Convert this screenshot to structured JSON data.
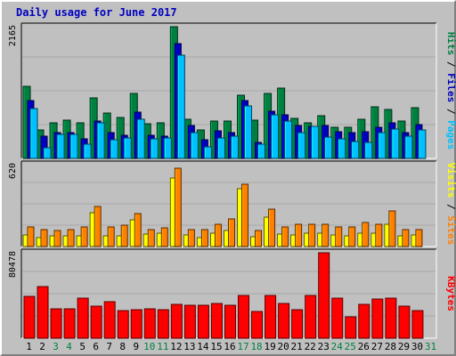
{
  "chart_data": {
    "type": "bar",
    "title": "Daily usage for June 2017",
    "categories": [
      "1",
      "2",
      "3",
      "4",
      "5",
      "6",
      "7",
      "8",
      "9",
      "10",
      "11",
      "12",
      "13",
      "14",
      "15",
      "16",
      "17",
      "18",
      "19",
      "20",
      "21",
      "22",
      "23",
      "24",
      "25",
      "26",
      "27",
      "28",
      "29",
      "30",
      "31"
    ],
    "weekend_days": [
      "3",
      "4",
      "10",
      "11",
      "17",
      "18",
      "24",
      "25",
      "31"
    ],
    "colors": {
      "hits": "#008040",
      "files": "#0000c0",
      "pages": "#00c0ff",
      "visits": "#ffff00",
      "sites": "#ff8000",
      "kbytes": "#ff0000",
      "weekday_label": "#000000",
      "weekend_label": "#008040"
    },
    "panels": [
      {
        "id": "hits_files_pages",
        "ymax_label": "2165",
        "ylim": [
          0,
          2165
        ],
        "series": [
          {
            "name": "Hits",
            "color": "#008040",
            "values": [
              1185,
              470,
              590,
              625,
              590,
              1000,
              750,
              670,
              1070,
              570,
              580,
              2165,
              650,
              475,
              610,
              610,
              1045,
              630,
              1070,
              1150,
              660,
              580,
              700,
              505,
              505,
              650,
              850,
              800,
              610,
              830,
              0
            ]
          },
          {
            "name": "Files",
            "color": "#0000c0",
            "values": [
              950,
              360,
              420,
              420,
              320,
              610,
              420,
              375,
              760,
              380,
              360,
              1880,
              540,
              310,
              450,
              420,
              950,
              270,
              770,
              720,
              540,
              530,
              540,
              440,
              420,
              440,
              510,
              580,
              430,
              550,
              0
            ]
          },
          {
            "name": "Pages",
            "color": "#00c0ff",
            "values": [
              820,
              180,
              390,
              390,
              240,
              590,
              310,
              330,
              650,
              320,
              330,
              1700,
              430,
              190,
              330,
              370,
              860,
              230,
              710,
              610,
              430,
              520,
              350,
              320,
              280,
              270,
              420,
              480,
              370,
              470,
              0
            ]
          }
        ]
      },
      {
        "id": "visits_sites",
        "ymax_label": "620",
        "ylim": [
          0,
          620
        ],
        "series": [
          {
            "name": "Visits",
            "color": "#ffff00",
            "values": [
              90,
              70,
              80,
              80,
              80,
              255,
              80,
              80,
              200,
              95,
              100,
              520,
              90,
              70,
              100,
              120,
              440,
              75,
              220,
              95,
              90,
              100,
              100,
              90,
              80,
              100,
              100,
              170,
              80,
              90,
              0
            ]
          },
          {
            "name": "Sites",
            "color": "#ff8000",
            "values": [
              150,
              130,
              120,
              130,
              150,
              305,
              150,
              160,
              250,
              130,
              140,
              590,
              130,
              130,
              170,
              210,
              470,
              120,
              280,
              150,
              170,
              170,
              170,
              150,
              150,
              185,
              170,
              270,
              130,
              130,
              0
            ]
          }
        ]
      },
      {
        "id": "kbytes",
        "ymax_label": "80478",
        "ylim": [
          0,
          80478
        ],
        "series": [
          {
            "name": "KBytes",
            "color": "#ff0000",
            "values": [
              39000,
              49000,
              28000,
              28000,
              38000,
              30000,
              34000,
              26000,
              27000,
              28000,
              27000,
              32000,
              31000,
              31000,
              33000,
              31000,
              40000,
              25000,
              40000,
              33000,
              27000,
              40000,
              80478,
              38000,
              20000,
              32000,
              37000,
              38000,
              30000,
              26000,
              0
            ]
          }
        ]
      }
    ],
    "right_labels": {
      "top": [
        {
          "text": "Hits",
          "color": "#008040"
        },
        {
          "text": " / ",
          "color": "#000000"
        },
        {
          "text": "Files",
          "color": "#0000c0"
        },
        {
          "text": " / ",
          "color": "#000000"
        },
        {
          "text": "Pages",
          "color": "#00c0ff"
        }
      ],
      "middle": [
        {
          "text": "Visits",
          "color": "#ffff00"
        },
        {
          "text": " / ",
          "color": "#000000"
        },
        {
          "text": "Sites",
          "color": "#ff8000"
        }
      ],
      "bottom": [
        {
          "text": "KBytes",
          "color": "#ff0000"
        }
      ]
    }
  }
}
